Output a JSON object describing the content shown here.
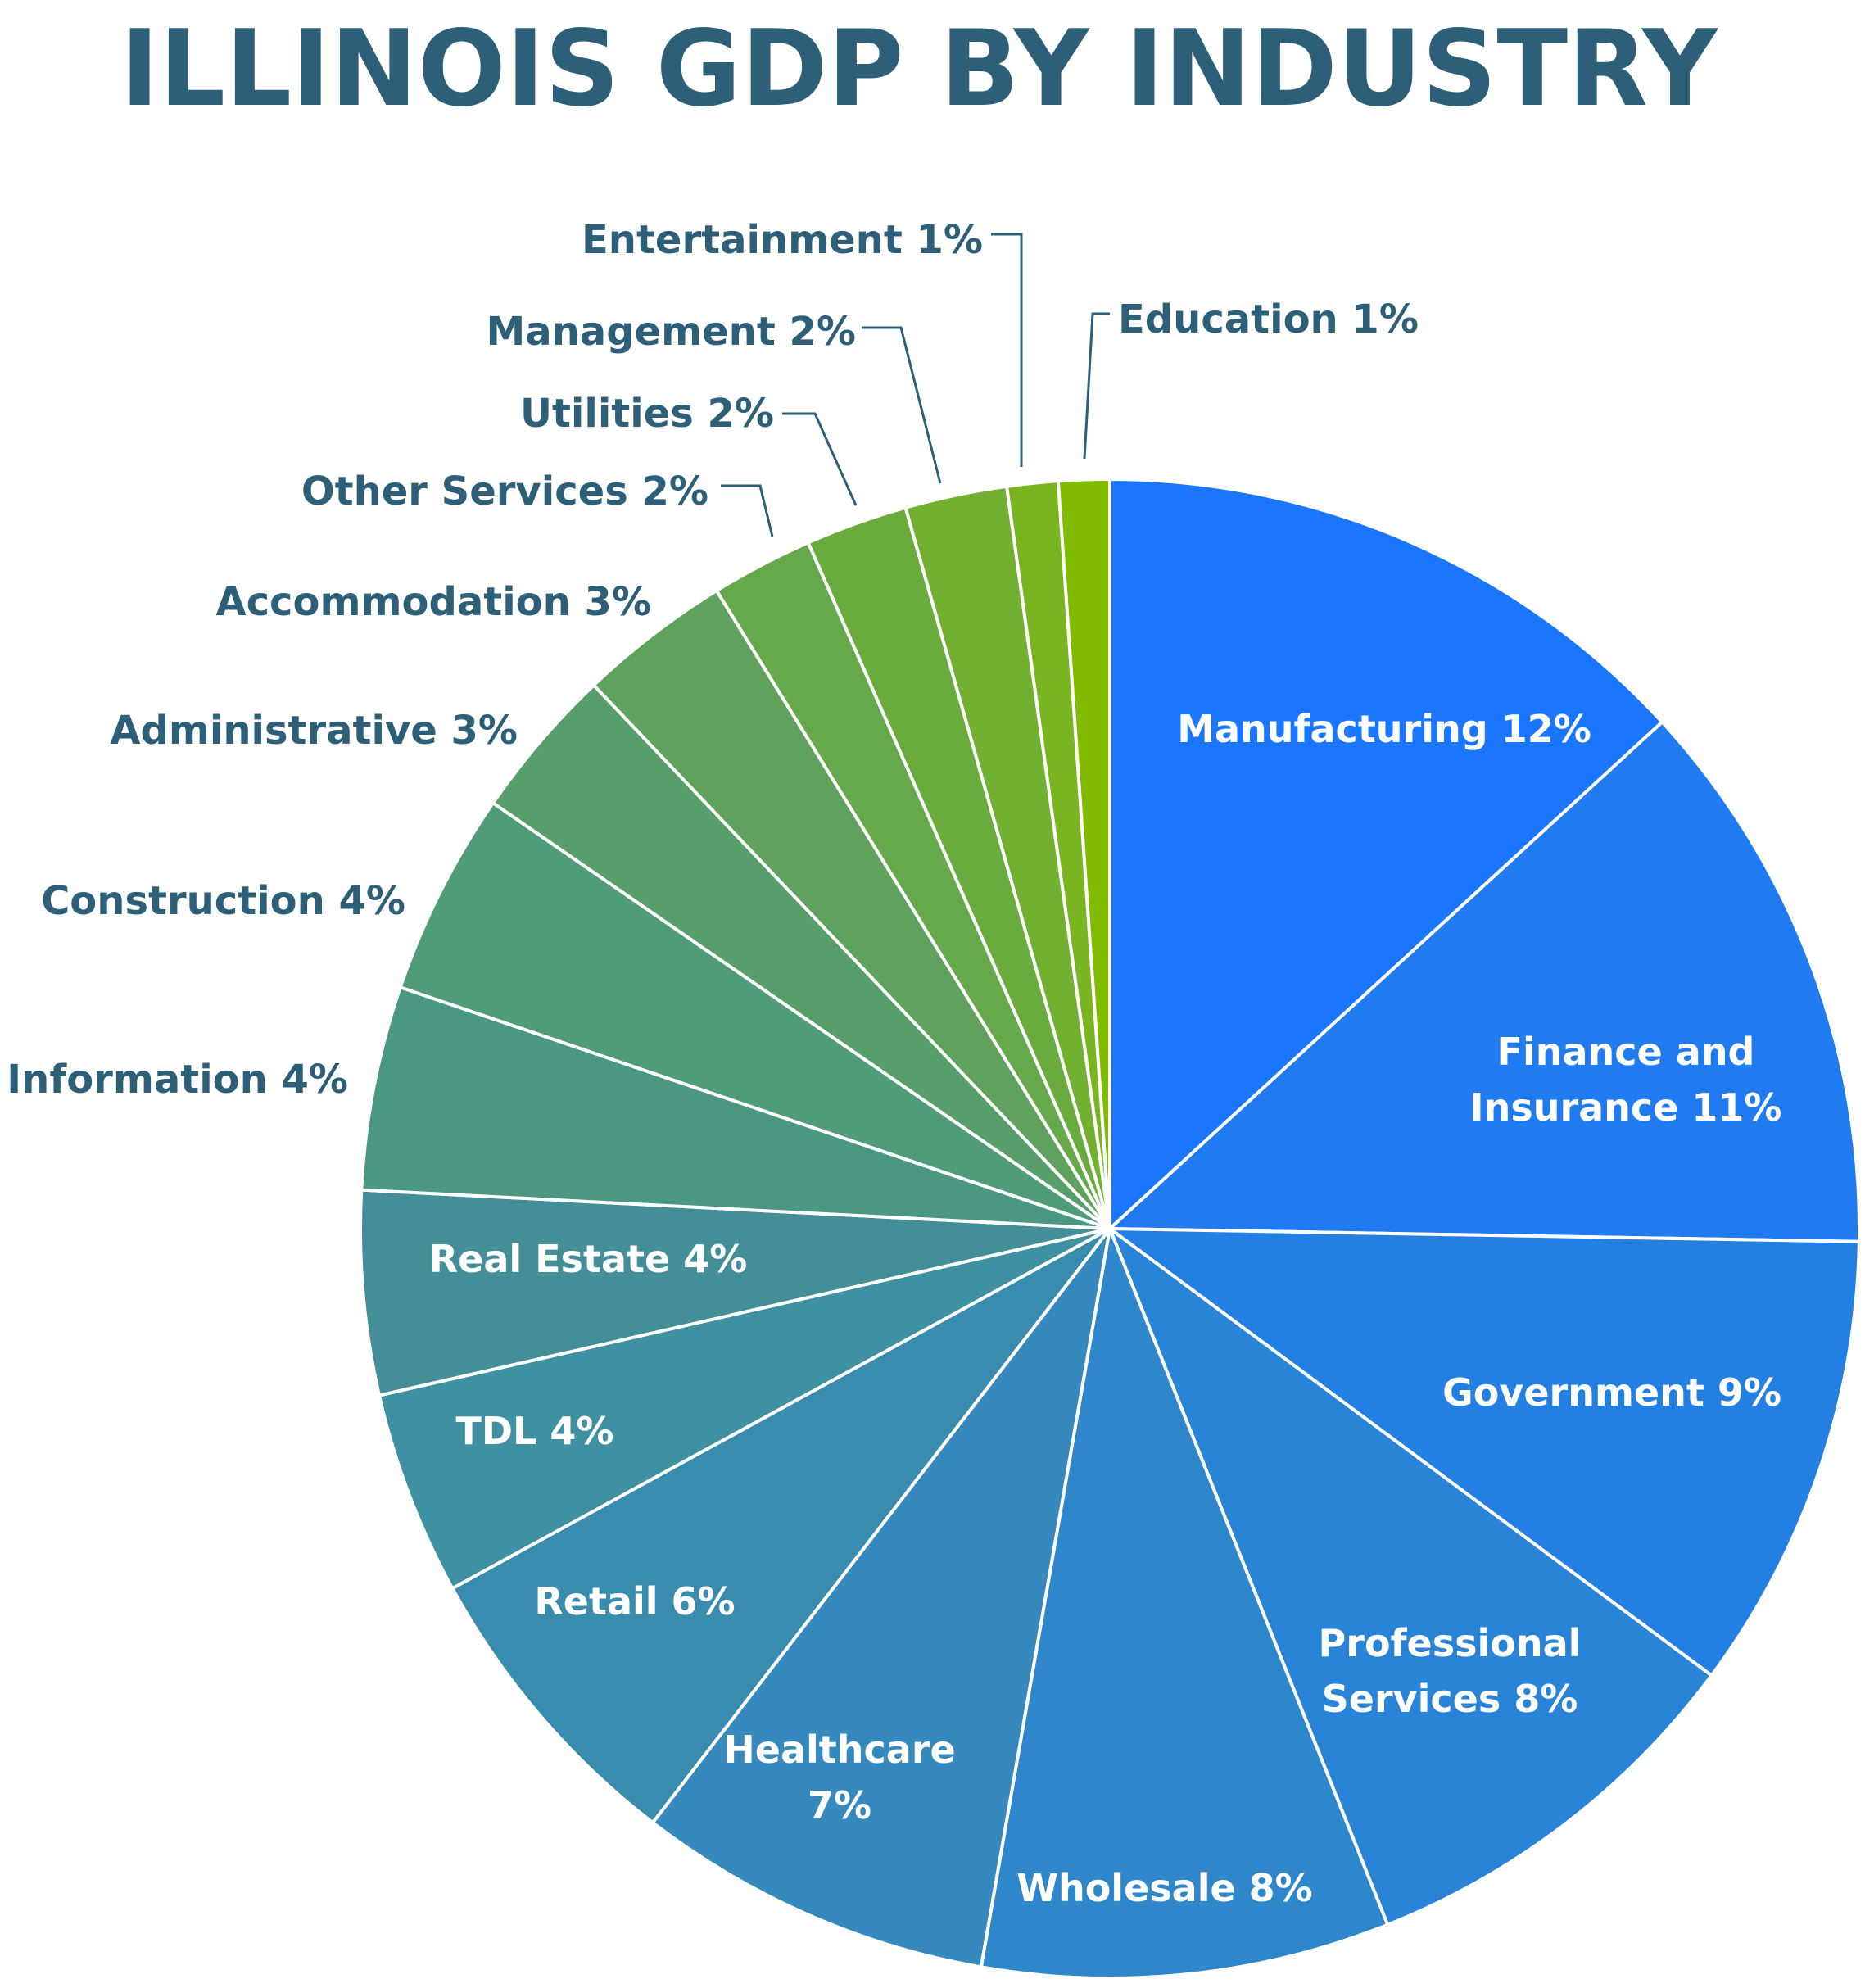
{
  "chart_data": {
    "type": "pie",
    "title": "ILLINOIS GDP BY INDUSTRY",
    "categories": [
      "Manufacturing",
      "Finance and Insurance",
      "Government",
      "Professional Services",
      "Wholesale",
      "Healthcare",
      "Retail",
      "TDL",
      "Real Estate",
      "Information",
      "Construction",
      "Administrative",
      "Accommodation",
      "Other Services",
      "Utilities",
      "Management",
      "Entertainment",
      "Education"
    ],
    "values": [
      12,
      11,
      9,
      8,
      8,
      7,
      6,
      4,
      4,
      4,
      4,
      3,
      3,
      2,
      2,
      2,
      1,
      1
    ],
    "labels": [
      "Manufacturing 12%",
      "Finance and Insurance 11%",
      "Government 9%",
      "Professional Services 8%",
      "Wholesale 8%",
      "Healthcare 7%",
      "Retail 6%",
      "TDL 4%",
      "Real Estate 4%",
      "Information 4%",
      "Construction 4%",
      "Administrative 3%",
      "Accommodation 3%",
      "Other Services 2%",
      "Utilities 2%",
      "Management 2%",
      "Entertainment 1%",
      "Education 1%"
    ],
    "unit": "%",
    "start_angle": "12 o'clock, clockwise",
    "legend": "none (direct labels)",
    "colors": [
      "#1a76ff",
      "#1f7bef",
      "#247fe3",
      "#2983d6",
      "#2e87cb",
      "#3589bd",
      "#3a8caf",
      "#3f90a0",
      "#448f97",
      "#4a9784",
      "#509b78",
      "#579e6b",
      "#5fa25d",
      "#66a84c",
      "#6aab3d",
      "#71b030",
      "#78b520",
      "#80bb00"
    ]
  },
  "title": "ILLINOIS GDP BY INDUSTRY",
  "slices": [
    {
      "name": "Manufacturing",
      "label": [
        "Manufacturing 12%"
      ],
      "inside": true
    },
    {
      "name": "Finance and Insurance",
      "label": [
        "Finance and",
        "Insurance 11%"
      ],
      "inside": true
    },
    {
      "name": "Government",
      "label": [
        "Government 9%"
      ],
      "inside": true
    },
    {
      "name": "Professional Services",
      "label": [
        "Professional",
        "Services 8%"
      ],
      "inside": true
    },
    {
      "name": "Wholesale",
      "label": [
        "Wholesale 8%"
      ],
      "inside": true
    },
    {
      "name": "Healthcare",
      "label": [
        "Healthcare",
        "7%"
      ],
      "inside": true
    },
    {
      "name": "Retail",
      "label": [
        "Retail 6%"
      ],
      "inside": true
    },
    {
      "name": "TDL",
      "label": [
        "TDL 4%"
      ],
      "inside": true
    },
    {
      "name": "Real Estate",
      "label": [
        "Real Estate 4%"
      ],
      "inside": true
    },
    {
      "name": "Information",
      "label": [
        "Information 4%"
      ],
      "inside": false
    },
    {
      "name": "Construction",
      "label": [
        "Construction 4%"
      ],
      "inside": false
    },
    {
      "name": "Administrative",
      "label": [
        "Administrative 3%"
      ],
      "inside": false
    },
    {
      "name": "Accommodation",
      "label": [
        "Accommodation 3%"
      ],
      "inside": false
    },
    {
      "name": "Other Services",
      "label": [
        "Other Services 2%"
      ],
      "inside": false
    },
    {
      "name": "Utilities",
      "label": [
        "Utilities 2%"
      ],
      "inside": false
    },
    {
      "name": "Management",
      "label": [
        "Management 2%"
      ],
      "inside": false
    },
    {
      "name": "Entertainment",
      "label": [
        "Entertainment 1%"
      ],
      "inside": false
    },
    {
      "name": "Education",
      "label": [
        "Education 1%"
      ],
      "inside": false
    }
  ]
}
